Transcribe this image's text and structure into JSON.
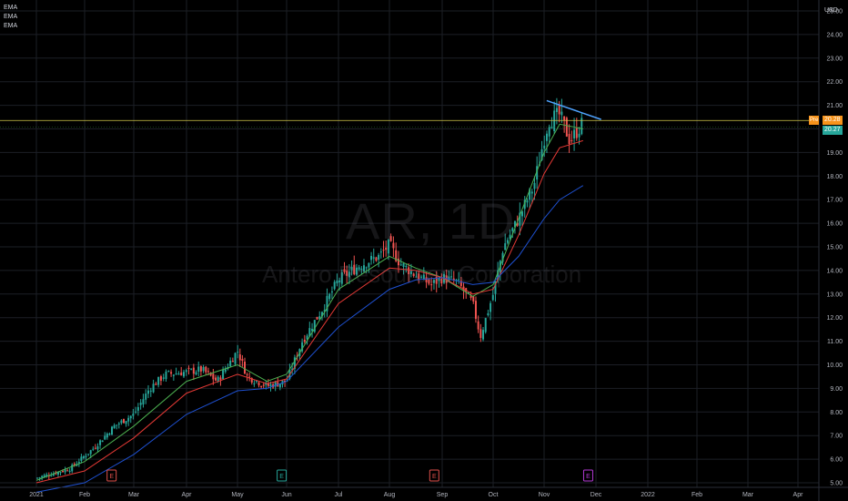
{
  "legend": {
    "items": [
      "EMA",
      "EMA",
      "EMA"
    ]
  },
  "watermark": {
    "symbol": "AR, 1D",
    "name": "Antero Resources Corporation"
  },
  "price_axis": {
    "unit": "USD"
  },
  "tags": {
    "pre_label": "Pre",
    "pre_value": "20.28",
    "last_value": "20.27",
    "pre_color": "#f7931a",
    "last_color": "#26a69a"
  },
  "chart_data": {
    "type": "candlestick",
    "symbol": "AR",
    "interval": "1D",
    "ylim": [
      5.0,
      25.0
    ],
    "y_ticks": [
      "5.00",
      "6.00",
      "7.00",
      "8.00",
      "9.00",
      "10.00",
      "11.00",
      "12.00",
      "13.00",
      "14.00",
      "15.00",
      "16.00",
      "17.00",
      "18.00",
      "19.00",
      "20.00",
      "21.00",
      "22.00",
      "23.00",
      "24.00",
      "25.00"
    ],
    "x_ticks": [
      "2021",
      "Feb",
      "Mar",
      "Apr",
      "May",
      "Jun",
      "Jul",
      "Aug",
      "Sep",
      "Oct",
      "Nov",
      "Dec",
      "2022",
      "Feb",
      "Mar",
      "Apr"
    ],
    "price_close_path": [
      {
        "t": 0.0,
        "v": 5.2
      },
      {
        "t": 0.7,
        "v": 5.6
      },
      {
        "t": 1.2,
        "v": 6.5
      },
      {
        "t": 1.6,
        "v": 7.4
      },
      {
        "t": 2.0,
        "v": 7.9
      },
      {
        "t": 2.3,
        "v": 9.0
      },
      {
        "t": 2.6,
        "v": 9.6
      },
      {
        "t": 3.0,
        "v": 9.7
      },
      {
        "t": 3.3,
        "v": 9.8
      },
      {
        "t": 3.6,
        "v": 9.3
      },
      {
        "t": 4.0,
        "v": 10.6
      },
      {
        "t": 4.2,
        "v": 9.5
      },
      {
        "t": 4.6,
        "v": 9.1
      },
      {
        "t": 5.0,
        "v": 9.3
      },
      {
        "t": 5.3,
        "v": 11.0
      },
      {
        "t": 5.7,
        "v": 12.4
      },
      {
        "t": 6.0,
        "v": 13.6
      },
      {
        "t": 6.4,
        "v": 14.2
      },
      {
        "t": 6.8,
        "v": 14.6
      },
      {
        "t": 7.0,
        "v": 15.1
      },
      {
        "t": 7.2,
        "v": 14.3
      },
      {
        "t": 7.5,
        "v": 13.8
      },
      {
        "t": 7.8,
        "v": 13.4
      },
      {
        "t": 8.0,
        "v": 13.7
      },
      {
        "t": 8.3,
        "v": 13.5
      },
      {
        "t": 8.6,
        "v": 12.6
      },
      {
        "t": 8.75,
        "v": 11.2
      },
      {
        "t": 9.0,
        "v": 13.0
      },
      {
        "t": 9.2,
        "v": 15.0
      },
      {
        "t": 9.5,
        "v": 16.2
      },
      {
        "t": 9.8,
        "v": 17.6
      },
      {
        "t": 10.0,
        "v": 19.6
      },
      {
        "t": 10.1,
        "v": 20.4
      },
      {
        "t": 10.3,
        "v": 20.6
      },
      {
        "t": 10.5,
        "v": 19.5
      },
      {
        "t": 10.75,
        "v": 20.27
      }
    ],
    "series": [
      {
        "name": "EMA",
        "color": "#4caf50",
        "values": [
          {
            "t": 0.0,
            "v": 5.1
          },
          {
            "t": 1.0,
            "v": 5.9
          },
          {
            "t": 2.0,
            "v": 7.4
          },
          {
            "t": 3.0,
            "v": 9.3
          },
          {
            "t": 4.0,
            "v": 10.0
          },
          {
            "t": 4.6,
            "v": 9.3
          },
          {
            "t": 5.0,
            "v": 9.6
          },
          {
            "t": 6.0,
            "v": 13.2
          },
          {
            "t": 7.0,
            "v": 14.6
          },
          {
            "t": 7.5,
            "v": 14.1
          },
          {
            "t": 8.0,
            "v": 13.7
          },
          {
            "t": 8.6,
            "v": 12.9
          },
          {
            "t": 9.0,
            "v": 13.4
          },
          {
            "t": 9.5,
            "v": 16.2
          },
          {
            "t": 10.0,
            "v": 19.0
          },
          {
            "t": 10.3,
            "v": 20.2
          },
          {
            "t": 10.75,
            "v": 20.0
          }
        ]
      },
      {
        "name": "EMA",
        "color": "#e53935",
        "values": [
          {
            "t": 0.0,
            "v": 5.0
          },
          {
            "t": 1.0,
            "v": 5.5
          },
          {
            "t": 2.0,
            "v": 6.9
          },
          {
            "t": 3.0,
            "v": 8.8
          },
          {
            "t": 4.0,
            "v": 9.6
          },
          {
            "t": 4.6,
            "v": 9.2
          },
          {
            "t": 5.0,
            "v": 9.4
          },
          {
            "t": 6.0,
            "v": 12.6
          },
          {
            "t": 7.0,
            "v": 14.1
          },
          {
            "t": 7.5,
            "v": 14.0
          },
          {
            "t": 8.0,
            "v": 13.7
          },
          {
            "t": 8.6,
            "v": 13.0
          },
          {
            "t": 9.0,
            "v": 13.2
          },
          {
            "t": 9.5,
            "v": 15.5
          },
          {
            "t": 10.0,
            "v": 18.1
          },
          {
            "t": 10.3,
            "v": 19.2
          },
          {
            "t": 10.75,
            "v": 19.5
          }
        ]
      },
      {
        "name": "EMA",
        "color": "#1e50d0",
        "values": [
          {
            "t": 0.0,
            "v": 4.6
          },
          {
            "t": 1.0,
            "v": 5.0
          },
          {
            "t": 2.0,
            "v": 6.2
          },
          {
            "t": 3.0,
            "v": 7.9
          },
          {
            "t": 4.0,
            "v": 8.9
          },
          {
            "t": 4.6,
            "v": 9.0
          },
          {
            "t": 5.0,
            "v": 9.3
          },
          {
            "t": 6.0,
            "v": 11.6
          },
          {
            "t": 7.0,
            "v": 13.2
          },
          {
            "t": 7.5,
            "v": 13.6
          },
          {
            "t": 8.0,
            "v": 13.7
          },
          {
            "t": 8.6,
            "v": 13.4
          },
          {
            "t": 9.0,
            "v": 13.5
          },
          {
            "t": 9.5,
            "v": 14.6
          },
          {
            "t": 10.0,
            "v": 16.2
          },
          {
            "t": 10.3,
            "v": 17.0
          },
          {
            "t": 10.75,
            "v": 17.6
          }
        ]
      }
    ],
    "trendline": {
      "color": "#4fa3ff",
      "from": {
        "t": 10.05,
        "v": 21.2
      },
      "to": {
        "t": 11.1,
        "v": 20.4
      }
    },
    "horizontal_line": {
      "color": "#d4c84a",
      "value": 20.28
    },
    "earnings_markers": [
      {
        "t": 1.55,
        "label": "E",
        "color": "#e0504a"
      },
      {
        "t": 4.9,
        "label": "E",
        "color": "#26a69a"
      },
      {
        "t": 7.85,
        "label": "E",
        "color": "#e0504a"
      },
      {
        "t": 10.85,
        "label": "E",
        "color": "#b43ad6"
      }
    ],
    "grid": true
  }
}
